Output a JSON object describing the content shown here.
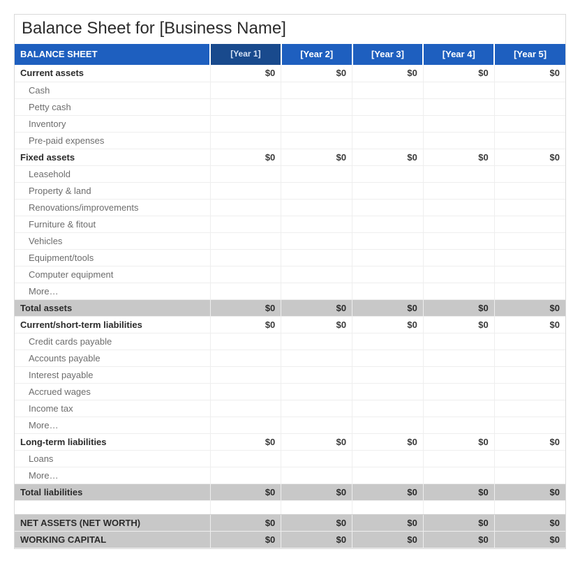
{
  "title": "Balance Sheet for [Business Name]",
  "header": {
    "label": "BALANCE SHEET",
    "years": [
      "[Year 1]",
      "[Year 2]",
      "[Year 3]",
      "[Year 4]",
      "[Year 5]"
    ]
  },
  "colors": {
    "header_bg": "#1e5fbf",
    "header_bg_dark": "#194a8d",
    "header_fg": "#ffffff",
    "total_bg": "#c8c8c8",
    "grid": "#eeeeee",
    "subtext": "#6d6d6d"
  },
  "zero": "$0",
  "rows": [
    {
      "type": "section",
      "label": "Current assets",
      "vals": [
        "$0",
        "$0",
        "$0",
        "$0",
        "$0"
      ]
    },
    {
      "type": "item",
      "label": "Cash"
    },
    {
      "type": "item",
      "label": "Petty cash"
    },
    {
      "type": "item",
      "label": "Inventory"
    },
    {
      "type": "item",
      "label": "Pre-paid expenses"
    },
    {
      "type": "section",
      "label": "Fixed assets",
      "vals": [
        "$0",
        "$0",
        "$0",
        "$0",
        "$0"
      ]
    },
    {
      "type": "item",
      "label": "Leasehold"
    },
    {
      "type": "item",
      "label": "Property & land"
    },
    {
      "type": "item",
      "label": "Renovations/improvements"
    },
    {
      "type": "item",
      "label": "Furniture & fitout"
    },
    {
      "type": "item",
      "label": "Vehicles"
    },
    {
      "type": "item",
      "label": "Equipment/tools"
    },
    {
      "type": "item",
      "label": "Computer equipment"
    },
    {
      "type": "item",
      "label": "More…"
    },
    {
      "type": "total",
      "label": "Total assets",
      "vals": [
        "$0",
        "$0",
        "$0",
        "$0",
        "$0"
      ]
    },
    {
      "type": "section",
      "label": "Current/short-term liabilities",
      "vals": [
        "$0",
        "$0",
        "$0",
        "$0",
        "$0"
      ]
    },
    {
      "type": "item",
      "label": "Credit cards payable"
    },
    {
      "type": "item",
      "label": "Accounts payable"
    },
    {
      "type": "item",
      "label": "Interest payable"
    },
    {
      "type": "item",
      "label": "Accrued wages"
    },
    {
      "type": "item",
      "label": "Income tax"
    },
    {
      "type": "item",
      "label": "More…"
    },
    {
      "type": "section",
      "label": "Long-term liabilities",
      "vals": [
        "$0",
        "$0",
        "$0",
        "$0",
        "$0"
      ]
    },
    {
      "type": "item",
      "label": "Loans"
    },
    {
      "type": "item",
      "label": "More…"
    },
    {
      "type": "total",
      "label": "Total liabilities",
      "vals": [
        "$0",
        "$0",
        "$0",
        "$0",
        "$0"
      ]
    },
    {
      "type": "spacer"
    },
    {
      "type": "final",
      "label": "NET ASSETS (NET WORTH)",
      "vals": [
        "$0",
        "$0",
        "$0",
        "$0",
        "$0"
      ]
    },
    {
      "type": "final",
      "label": "WORKING CAPITAL",
      "vals": [
        "$0",
        "$0",
        "$0",
        "$0",
        "$0"
      ]
    }
  ]
}
